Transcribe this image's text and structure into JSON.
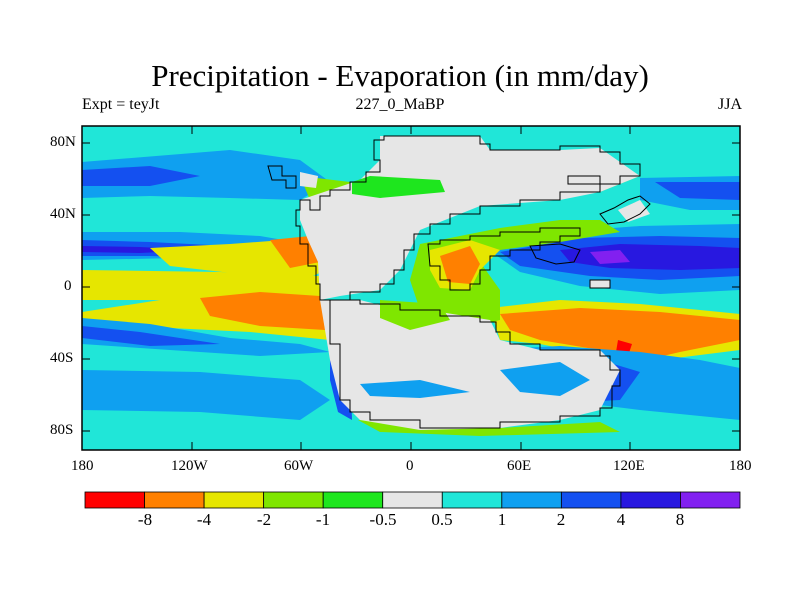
{
  "title": "Precipitation - Evaporation (in mm/day)",
  "subtitle": {
    "left": "Expt = teyJt",
    "center": "227_0_MaBP",
    "right": "JJA"
  },
  "axes": {
    "y_ticks": [
      "80N",
      "40N",
      "0",
      "40S",
      "80S"
    ],
    "x_ticks": [
      "180",
      "120W",
      "60W",
      "0",
      "60E",
      "120E",
      "180"
    ]
  },
  "colorbar": {
    "colors": [
      "#ff0000",
      "#ff8000",
      "#e6e600",
      "#7fe600",
      "#1ee61e",
      "#e6e6e6",
      "#20e6d8",
      "#0fa0f0",
      "#1450f0",
      "#2818e0",
      "#8220f0"
    ],
    "labels": [
      "-8",
      "-4",
      "-2",
      "-1",
      "-0.5",
      "0.5",
      "1",
      "2",
      "4",
      "8"
    ]
  }
}
